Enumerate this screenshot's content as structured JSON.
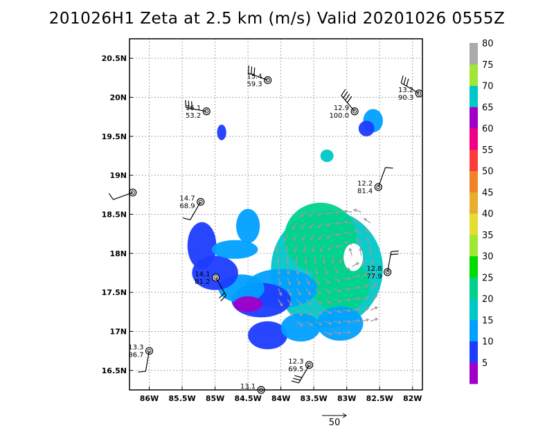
{
  "chart_data": {
    "type": "map",
    "title": "201026H1  Zeta at 2.5 km (m/s) Valid 20201026  0555Z",
    "lon_range": [
      -86.3,
      -81.85
    ],
    "lat_range": [
      16.25,
      20.75
    ],
    "x_ticks": [
      {
        "lon": -86.0,
        "label": "86W"
      },
      {
        "lon": -85.5,
        "label": "85.5W"
      },
      {
        "lon": -85.0,
        "label": "85W"
      },
      {
        "lon": -84.5,
        "label": "84.5W"
      },
      {
        "lon": -84.0,
        "label": "84W"
      },
      {
        "lon": -83.5,
        "label": "83.5W"
      },
      {
        "lon": -83.0,
        "label": "83W"
      },
      {
        "lon": -82.5,
        "label": "82.5W"
      },
      {
        "lon": -82.0,
        "label": "82W"
      }
    ],
    "y_ticks": [
      {
        "lat": 16.5,
        "label": "16.5N"
      },
      {
        "lat": 17.0,
        "label": "17N"
      },
      {
        "lat": 17.5,
        "label": "17.5N"
      },
      {
        "lat": 18.0,
        "label": "18N"
      },
      {
        "lat": 18.5,
        "label": "18.5N"
      },
      {
        "lat": 19.0,
        "label": "19N"
      },
      {
        "lat": 19.5,
        "label": "19.5N"
      },
      {
        "lat": 20.0,
        "label": "20N"
      },
      {
        "lat": 20.5,
        "label": "20.5N"
      }
    ],
    "grid": "dotted",
    "colorbar": {
      "levels": [
        5,
        10,
        15,
        20,
        25,
        30,
        35,
        40,
        45,
        50,
        55,
        60,
        65,
        70,
        75,
        80
      ],
      "colors": [
        "#a000c8",
        "#1e3cff",
        "#00a0ff",
        "#00c8c8",
        "#00d28c",
        "#00dc00",
        "#a0e632",
        "#e6dc32",
        "#e6af2d",
        "#f08228",
        "#fa3c3c",
        "#f00082",
        "#a000c8",
        "#00c8c8",
        "#a0e632",
        "#aaaaaa"
      ],
      "placement": "right"
    },
    "reference_vector": {
      "label": "50",
      "speed": 50
    },
    "stations": [
      {
        "top": "15.4",
        "bottom": "59.3",
        "lon": -84.2,
        "lat": 20.22,
        "barb_dir": 290,
        "barbs": 3
      },
      {
        "top": "16.1",
        "bottom": "53.2",
        "lon": -85.13,
        "lat": 19.82,
        "barb_dir": 280,
        "barbs": 3
      },
      {
        "top": "12.9",
        "bottom": "100.0",
        "lon": -82.88,
        "lat": 19.82,
        "barb_dir": 320,
        "barbs": 4
      },
      {
        "top": "13.2",
        "bottom": "90.3",
        "lon": -81.9,
        "lat": 20.05,
        "barb_dir": 300,
        "barbs": 3
      },
      {
        "top": "",
        "bottom": "",
        "lon": -86.25,
        "lat": 18.78,
        "barb_dir": 250,
        "barbs": 1
      },
      {
        "top": "14.7",
        "bottom": "68.9",
        "lon": -85.22,
        "lat": 18.66,
        "barb_dir": 210,
        "barbs": 1
      },
      {
        "top": "12.2",
        "bottom": "81.4",
        "lon": -82.52,
        "lat": 18.85,
        "barb_dir": 20,
        "barbs": 1
      },
      {
        "top": "12.8",
        "bottom": "77.9",
        "lon": -82.38,
        "lat": 17.76,
        "barb_dir": 10,
        "barbs": 2
      },
      {
        "top": "14.1",
        "bottom": "81.2",
        "lon": -84.99,
        "lat": 17.69,
        "barb_dir": 150,
        "barbs": 2
      },
      {
        "top": "13.3",
        "bottom": "86.7",
        "lon": -86.0,
        "lat": 16.75,
        "barb_dir": 190,
        "barbs": 1
      },
      {
        "top": "12.3",
        "bottom": "69.5",
        "lon": -83.57,
        "lat": 16.57,
        "barb_dir": 210,
        "barbs": 3
      },
      {
        "top": "13.1",
        "bottom": "",
        "lon": -84.3,
        "lat": 16.25,
        "barb_dir": 0,
        "barbs": 0
      }
    ]
  }
}
